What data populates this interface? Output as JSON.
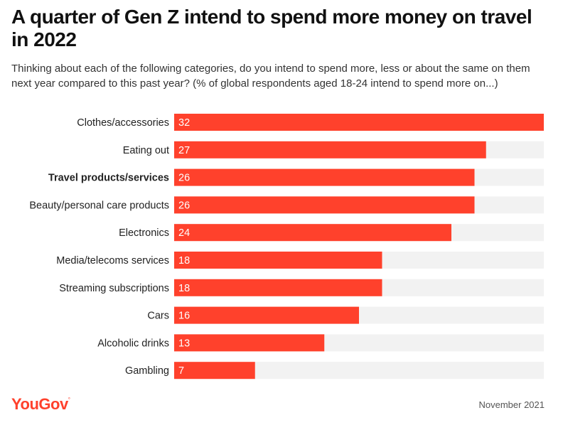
{
  "title": "A quarter of Gen Z intend to spend more money on travel in 2022",
  "subtitle": "Thinking about each of the following categories, do you intend to spend more, less or about the same on them next year compared to this past year? (% of global respondents aged 18-24 intend to spend more on...)",
  "footer": {
    "brand": "YouGov",
    "date": "November 2021"
  },
  "colors": {
    "bar": "#ff412c",
    "track": "#f2f2f2",
    "value_text": "#ffffff",
    "label_text": "#222222"
  },
  "chart_data": {
    "type": "bar",
    "orientation": "horizontal",
    "categories": [
      "Clothes/accessories",
      "Eating out",
      "Travel products/services",
      "Beauty/personal care products",
      "Electronics",
      "Media/telecoms services",
      "Streaming subscriptions",
      "Cars",
      "Alcoholic drinks",
      "Gambling"
    ],
    "values": [
      32,
      27,
      26,
      26,
      24,
      18,
      18,
      16,
      13,
      7
    ],
    "highlighted_category": "Travel products/services",
    "xlim": [
      0,
      32
    ],
    "data_labels": true,
    "grid": false,
    "legend": "none"
  }
}
